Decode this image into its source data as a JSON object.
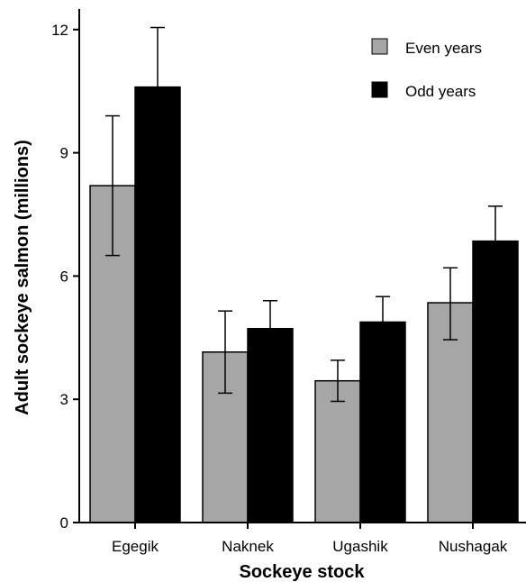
{
  "chart_data": {
    "type": "bar",
    "title": "",
    "xlabel": "Sockeye stock",
    "ylabel": "Adult sockeye salmon (millions)",
    "categories": [
      "Egegik",
      "Naknek",
      "Ugashik",
      "Nushagak"
    ],
    "ylim": [
      0,
      12.5
    ],
    "yticks": [
      0,
      3,
      6,
      9,
      12
    ],
    "grid": false,
    "legend_position": "top-right",
    "series": [
      {
        "name": "Even years",
        "color": "#a6a6a6",
        "values": [
          8.2,
          4.15,
          3.45,
          5.35
        ],
        "error_lower": [
          6.5,
          3.15,
          2.95,
          4.45
        ],
        "error_upper": [
          9.9,
          5.15,
          3.95,
          6.2
        ]
      },
      {
        "name": "Odd years",
        "color": "#000000",
        "values": [
          10.6,
          4.72,
          4.88,
          6.85
        ],
        "error_lower": [
          10.6,
          4.72,
          4.88,
          6.85
        ],
        "error_upper": [
          12.05,
          5.4,
          5.5,
          7.7
        ]
      }
    ]
  }
}
